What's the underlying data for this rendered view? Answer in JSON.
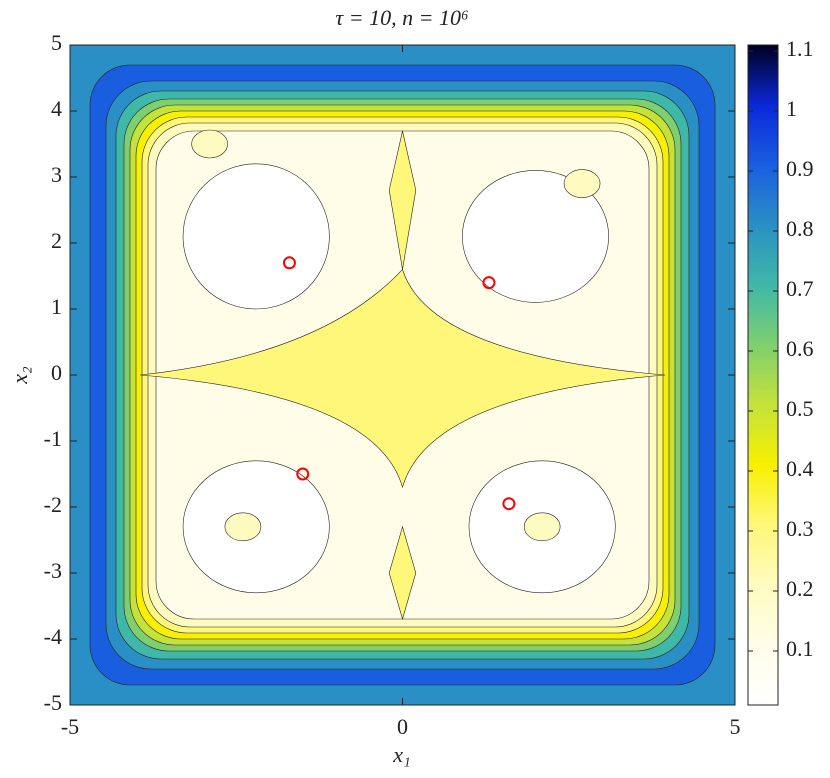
{
  "chart_data": {
    "type": "contour",
    "title": "τ = 10, n = 10⁶",
    "x_label": "x₁",
    "y_label": "x₂",
    "xlim": [
      -5,
      5
    ],
    "ylim": [
      -5,
      5
    ],
    "xticks": [
      -5,
      0,
      5
    ],
    "yticks": [
      -5,
      -4,
      -3,
      -2,
      -1,
      0,
      1,
      2,
      3,
      4,
      5
    ],
    "series": [
      {
        "color": "#ff0000",
        "x": [
          -1.7,
          1.3,
          -1.5,
          1.6
        ],
        "values": [
          1.7,
          1.4,
          -1.5,
          -1.95
        ]
      }
    ],
    "colorbar": {
      "lim": [
        0.01,
        1.11
      ],
      "ticks": [
        0.1,
        0.2,
        0.3,
        0.4,
        0.5,
        0.6,
        0.7,
        0.8,
        0.9,
        1,
        1.1
      ],
      "colormap": [
        "#ffffff",
        "#fffde8",
        "#fffbc0",
        "#fff77a",
        "#f7f000",
        "#c5e23a",
        "#7fcf6e",
        "#3fb8a8",
        "#2a8fc4",
        "#1a5ee0",
        "#0a28d8",
        "#000020"
      ]
    }
  }
}
